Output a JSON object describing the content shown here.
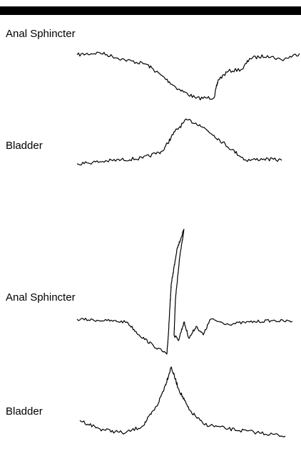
{
  "panels": [
    {
      "traces": [
        {
          "label": "Anal Sphincter"
        },
        {
          "label": "Bladder"
        }
      ]
    },
    {
      "traces": [
        {
          "label": "Anal Sphincter"
        },
        {
          "label": "Bladder"
        }
      ]
    }
  ]
}
